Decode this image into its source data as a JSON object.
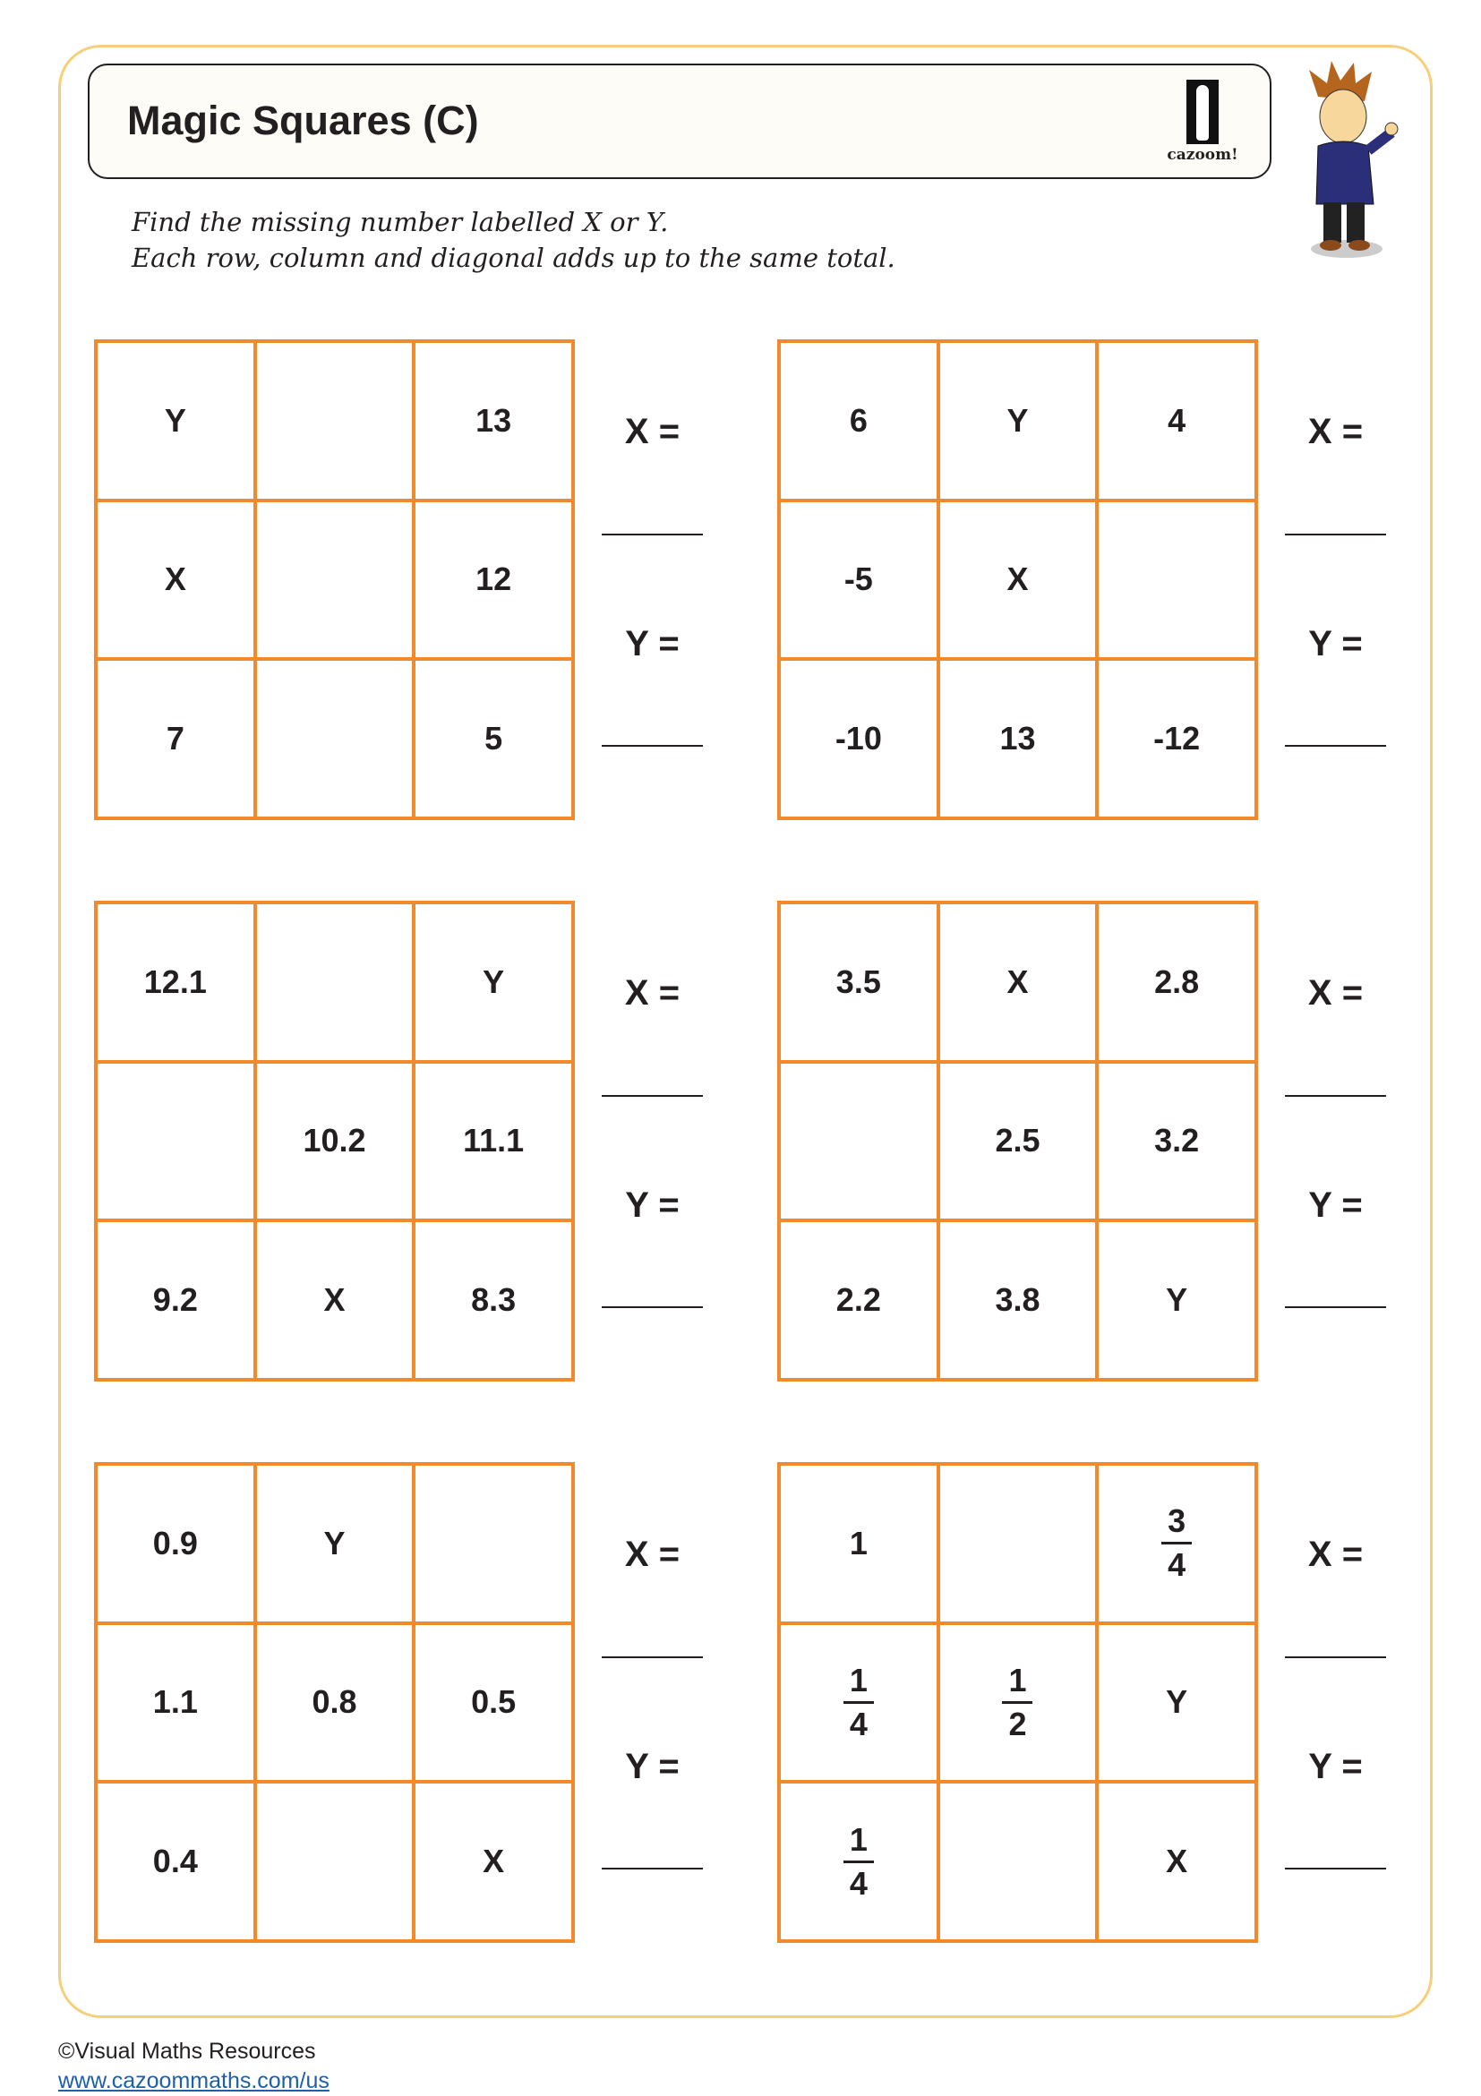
{
  "title": "Magic Squares (C)",
  "logo_text": "cazoom!",
  "instructions": [
    "Find the missing number labelled X or Y.",
    "Each row, column and diagonal adds up to the same total."
  ],
  "answer_labels": {
    "x": "X =",
    "y": "Y ="
  },
  "colors": {
    "grid": "#f28a2c",
    "frame": "#f7cf7a",
    "text": "#231f20"
  },
  "puzzles": [
    {
      "cells": [
        [
          "Y",
          "",
          "13"
        ],
        [
          "X",
          "",
          "12"
        ],
        [
          "7",
          "",
          "5"
        ]
      ]
    },
    {
      "cells": [
        [
          "6",
          "Y",
          "4"
        ],
        [
          "-5",
          "X",
          ""
        ],
        [
          "-10",
          "13",
          "-12"
        ]
      ]
    },
    {
      "cells": [
        [
          "12.1",
          "",
          "Y"
        ],
        [
          "",
          "10.2",
          "11.1"
        ],
        [
          "9.2",
          "X",
          "8.3"
        ]
      ]
    },
    {
      "cells": [
        [
          "3.5",
          "X",
          "2.8"
        ],
        [
          "",
          "2.5",
          "3.2"
        ],
        [
          "2.2",
          "3.8",
          "Y"
        ]
      ]
    },
    {
      "cells": [
        [
          "0.9",
          "Y",
          ""
        ],
        [
          "1.1",
          "0.8",
          "0.5"
        ],
        [
          "0.4",
          "",
          "X"
        ]
      ]
    },
    {
      "cells": [
        [
          "1",
          "",
          {
            "num": "3",
            "den": "4"
          }
        ],
        [
          {
            "num": "1",
            "den": "4"
          },
          {
            "num": "1",
            "den": "2"
          },
          "Y"
        ],
        [
          {
            "num": "1",
            "den": "4"
          },
          "",
          "X"
        ]
      ]
    }
  ],
  "footer": {
    "copyright": "©Visual Maths Resources",
    "link": "www.cazoommaths.com/us"
  }
}
